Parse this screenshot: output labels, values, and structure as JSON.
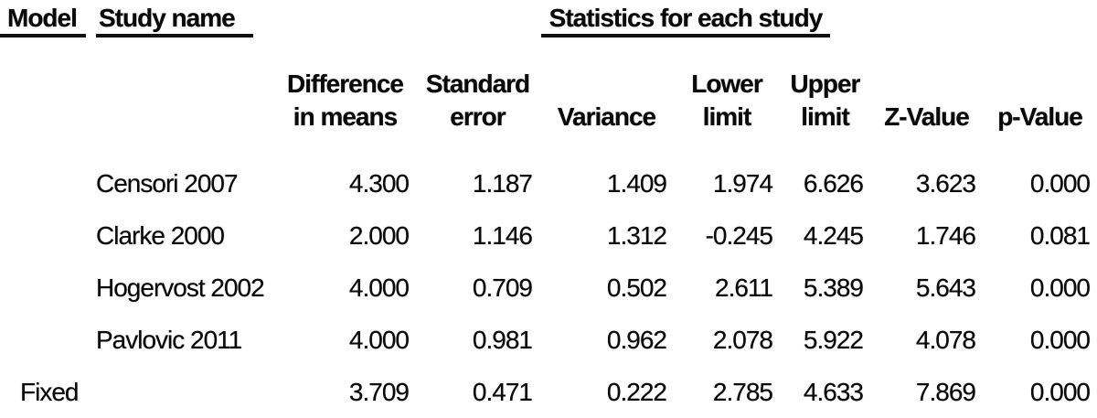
{
  "page": {
    "background": "#ffffff",
    "text_color": "#0a0a0a"
  },
  "table": {
    "model_header": "Model",
    "study_header": "Study name",
    "stats_group_header": "Statistics for each study",
    "column_headers": [
      {
        "line1": "Difference",
        "line2": "in means",
        "key": "difference-in-means"
      },
      {
        "line1": "Standard",
        "line2": "error",
        "key": "standard-error"
      },
      {
        "line1": "",
        "line2": "Variance",
        "key": "variance"
      },
      {
        "line1": "Lower",
        "line2": "limit",
        "key": "lower-limit"
      },
      {
        "line1": "Upper",
        "line2": "limit",
        "key": "upper-limit"
      },
      {
        "line1": "",
        "line2": "Z-Value",
        "key": "z-value"
      },
      {
        "line1": "",
        "line2": "p-Value",
        "key": "p-value"
      }
    ],
    "rows": [
      {
        "model": "",
        "study": "Censori 2007",
        "values": [
          "4.300",
          "1.187",
          "1.409",
          "1.974",
          "6.626",
          "3.623",
          "0.000"
        ]
      },
      {
        "model": "",
        "study": "Clarke 2000",
        "values": [
          "2.000",
          "1.146",
          "1.312",
          "-0.245",
          "4.245",
          "1.746",
          "0.081"
        ]
      },
      {
        "model": "",
        "study": "Hogervost 2002",
        "values": [
          "4.000",
          "0.709",
          "0.502",
          "2.611",
          "5.389",
          "5.643",
          "0.000"
        ]
      },
      {
        "model": "",
        "study": "Pavlovic 2011",
        "values": [
          "4.000",
          "0.981",
          "0.962",
          "2.078",
          "5.922",
          "4.078",
          "0.000"
        ]
      },
      {
        "model": "Fixed",
        "study": "",
        "values": [
          "3.709",
          "0.471",
          "0.222",
          "2.785",
          "4.633",
          "7.869",
          "0.000"
        ]
      }
    ]
  },
  "chart_data": {
    "type": "table",
    "title": "Statistics for each study",
    "columns": [
      "Model",
      "Study name",
      "Difference in means",
      "Standard error",
      "Variance",
      "Lower limit",
      "Upper limit",
      "Z-Value",
      "p-Value"
    ],
    "rows": [
      [
        "",
        "Censori 2007",
        4.3,
        1.187,
        1.409,
        1.974,
        6.626,
        3.623,
        0.0
      ],
      [
        "",
        "Clarke 2000",
        2.0,
        1.146,
        1.312,
        -0.245,
        4.245,
        1.746,
        0.081
      ],
      [
        "",
        "Hogervost 2002",
        4.0,
        0.709,
        0.502,
        2.611,
        5.389,
        5.643,
        0.0
      ],
      [
        "",
        "Pavlovic 2011",
        4.0,
        0.981,
        0.962,
        2.078,
        5.922,
        4.078,
        0.0
      ],
      [
        "Fixed",
        "",
        3.709,
        0.471,
        0.222,
        2.785,
        4.633,
        7.869,
        0.0
      ]
    ]
  }
}
